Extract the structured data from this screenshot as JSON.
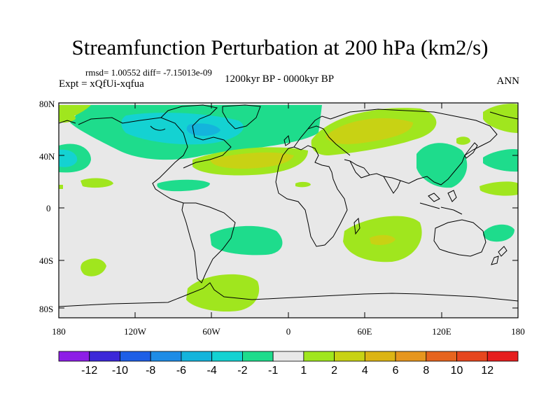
{
  "title": "Streamfunction Perturbation at 200 hPa (km2/s)",
  "stats_text": "rmsd= 1.00552 diff= -7.15013e-09",
  "experiment_text": "Expt = xQfUi-xqfua",
  "period_text": "1200kyr BP - 0000kyr BP",
  "season_text": "ANN",
  "lat_labels": [
    "80N",
    "40N",
    "0",
    "40S",
    "80S"
  ],
  "lon_labels": [
    "180",
    "120W",
    "60W",
    "0",
    "60E",
    "120E",
    "180"
  ],
  "colorbar": {
    "colors": [
      "#8d1ee6",
      "#3c28d8",
      "#1e5fe6",
      "#1e8ce6",
      "#14b4dc",
      "#14d2d2",
      "#1edc8c",
      "#e8e8e8",
      "#a0e61e",
      "#c8d214",
      "#dcb414",
      "#e6961e",
      "#e6641e",
      "#e6461e",
      "#e61e1e"
    ],
    "labels": [
      "-12",
      "-10",
      "-8",
      "-6",
      "-4",
      "-2",
      "-1",
      "1",
      "2",
      "4",
      "6",
      "8",
      "10",
      "12"
    ]
  },
  "colors": {
    "background": "#e8e8e8",
    "coast": "#000000"
  }
}
